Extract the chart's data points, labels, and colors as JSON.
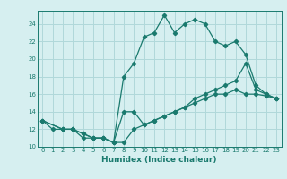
{
  "line1_x": [
    0,
    1,
    2,
    3,
    4,
    5,
    6,
    7,
    8,
    9,
    10,
    11,
    12,
    13,
    14,
    15,
    16,
    17,
    18,
    19,
    20,
    21,
    22,
    23
  ],
  "line1_y": [
    13,
    12,
    12,
    12,
    11,
    11,
    11,
    10.5,
    10.5,
    12,
    12.5,
    13,
    13.5,
    14,
    14.5,
    15,
    15.5,
    16,
    16,
    16.5,
    16,
    16,
    15.8,
    15.5
  ],
  "line2_x": [
    0,
    2,
    3,
    4,
    5,
    6,
    7,
    8,
    9,
    10,
    11,
    12,
    13,
    14,
    15,
    16,
    17,
    18,
    19,
    20,
    21,
    22,
    23
  ],
  "line2_y": [
    13,
    12,
    12,
    11.5,
    11,
    11,
    10.5,
    18,
    19.5,
    22.5,
    23,
    25,
    23,
    24,
    24.5,
    24,
    22,
    21.5,
    22,
    20.5,
    17,
    16,
    15.5
  ],
  "line3_x": [
    0,
    2,
    3,
    4,
    5,
    6,
    7,
    8,
    9,
    10,
    11,
    12,
    13,
    14,
    15,
    16,
    17,
    18,
    19,
    20,
    21,
    22,
    23
  ],
  "line3_y": [
    13,
    12,
    12,
    11.5,
    11,
    11,
    10.5,
    14,
    14,
    12.5,
    13,
    13.5,
    14,
    14.5,
    15.5,
    16,
    16.5,
    17,
    17.5,
    19.5,
    16.5,
    16,
    15.5
  ],
  "line_color": "#1a7a6e",
  "bg_color": "#d6eff0",
  "grid_color": "#b0d8da",
  "xlabel": "Humidex (Indice chaleur)",
  "xlim": [
    -0.5,
    23.5
  ],
  "ylim": [
    10,
    25.5
  ],
  "yticks": [
    10,
    12,
    14,
    16,
    18,
    20,
    22,
    24
  ],
  "xticks": [
    0,
    1,
    2,
    3,
    4,
    5,
    6,
    7,
    8,
    9,
    10,
    11,
    12,
    13,
    14,
    15,
    16,
    17,
    18,
    19,
    20,
    21,
    22,
    23
  ],
  "marker": "D",
  "markersize": 2.2,
  "linewidth": 0.9,
  "tick_fontsize": 5.0,
  "xlabel_fontsize": 6.5
}
